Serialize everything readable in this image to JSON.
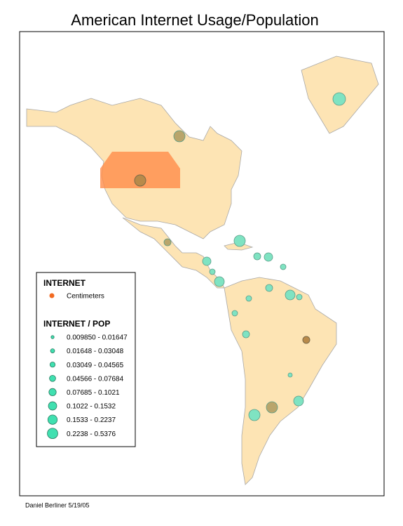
{
  "title": "American Internet Usage/Population",
  "legend": {
    "internet_heading": "INTERNET",
    "internet_item": "Centimeters",
    "pop_heading": "INTERNET / POP",
    "classes": [
      "0.009850 - 0.01647",
      "0.01648 - 0.03048",
      "0.03049 - 0.04565",
      "0.04566 - 0.07684",
      "0.07685 - 0.1021",
      "0.1022 - 0.1532",
      "0.1533 - 0.2237",
      "0.2238 - 0.5376"
    ]
  },
  "footer": "Daniel Berliner 5/19/05"
}
